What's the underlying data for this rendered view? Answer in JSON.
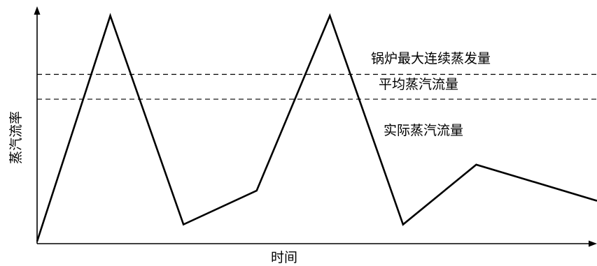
{
  "chart_data": {
    "type": "line",
    "title": "",
    "xlabel": "时间",
    "ylabel": "蒸汽流率",
    "grid": false,
    "series": [
      {
        "name": "实际蒸汽流量",
        "x": [
          0,
          1,
          2,
          3,
          4,
          5,
          6,
          7.65
        ],
        "values": [
          0,
          100,
          7.5,
          22.5,
          100,
          7.5,
          34,
          18
        ]
      }
    ],
    "reference_lines": [
      {
        "name": "锅炉最大连续蒸发量",
        "value": 74,
        "style": "dashed"
      },
      {
        "name": "平均蒸汽流量",
        "value": 63,
        "style": "dashed"
      }
    ],
    "ylim": [
      -1,
      102
    ],
    "xlim": [
      0,
      7.65
    ],
    "colors": {
      "line": "#000000",
      "axis": "#000000",
      "dashed": "#000000"
    }
  }
}
